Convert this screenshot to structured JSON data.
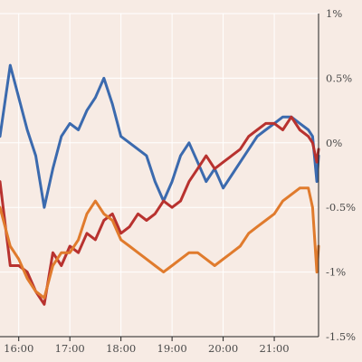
{
  "chart_data": {
    "type": "line",
    "title": "",
    "xlabel": "",
    "ylabel": "",
    "ylim": [
      -1.5,
      1.0
    ],
    "xlim": [
      "15:38",
      "21:52"
    ],
    "grid": true,
    "legend": "none",
    "x_ticks": [
      "16:00",
      "17:00",
      "18:00",
      "19:00",
      "20:00",
      "21:00"
    ],
    "y_ticks": [
      {
        "value": 1.0,
        "label": "1%"
      },
      {
        "value": 0.5,
        "label": "0.5%"
      },
      {
        "value": 0.0,
        "label": "0%"
      },
      {
        "value": -0.5,
        "label": "-0.5%"
      },
      {
        "value": -1.0,
        "label": "-1%"
      },
      {
        "value": -1.5,
        "label": "-1.5%"
      }
    ],
    "x": [
      "15:38",
      "15:50",
      "16:00",
      "16:10",
      "16:20",
      "16:30",
      "16:40",
      "16:50",
      "17:00",
      "17:10",
      "17:20",
      "17:30",
      "17:40",
      "17:50",
      "18:00",
      "18:10",
      "18:20",
      "18:30",
      "18:40",
      "18:50",
      "19:00",
      "19:10",
      "19:20",
      "19:30",
      "19:40",
      "19:50",
      "20:00",
      "20:10",
      "20:20",
      "20:30",
      "20:40",
      "20:50",
      "21:00",
      "21:10",
      "21:20",
      "21:30",
      "21:40",
      "21:45",
      "21:50",
      "21:52"
    ],
    "series": [
      {
        "color": "#3b6aae",
        "values": [
          0.05,
          0.6,
          0.35,
          0.1,
          -0.1,
          -0.5,
          -0.2,
          0.05,
          0.15,
          0.1,
          0.25,
          0.35,
          0.5,
          0.3,
          0.05,
          0.0,
          -0.05,
          -0.1,
          -0.3,
          -0.45,
          -0.3,
          -0.1,
          0.0,
          -0.15,
          -0.3,
          -0.2,
          -0.35,
          -0.25,
          -0.15,
          -0.05,
          0.05,
          0.1,
          0.15,
          0.2,
          0.2,
          0.15,
          0.1,
          0.05,
          -0.3,
          -0.1
        ]
      },
      {
        "color": "#b8322f",
        "values": [
          -0.3,
          -0.95,
          -0.95,
          -1.0,
          -1.15,
          -1.25,
          -0.85,
          -0.95,
          -0.8,
          -0.85,
          -0.7,
          -0.75,
          -0.6,
          -0.55,
          -0.7,
          -0.65,
          -0.55,
          -0.6,
          -0.55,
          -0.45,
          -0.5,
          -0.45,
          -0.3,
          -0.2,
          -0.1,
          -0.2,
          -0.15,
          -0.1,
          -0.05,
          0.05,
          0.1,
          0.15,
          0.15,
          0.1,
          0.2,
          0.1,
          0.05,
          0.0,
          -0.15,
          -0.05
        ]
      },
      {
        "color": "#e07b2d",
        "values": [
          -0.5,
          -0.8,
          -0.9,
          -1.05,
          -1.15,
          -1.2,
          -0.95,
          -0.85,
          -0.85,
          -0.75,
          -0.55,
          -0.45,
          -0.55,
          -0.6,
          -0.75,
          -0.8,
          -0.85,
          -0.9,
          -0.95,
          -1.0,
          -0.95,
          -0.9,
          -0.85,
          -0.85,
          -0.9,
          -0.95,
          -0.9,
          -0.85,
          -0.8,
          -0.7,
          -0.65,
          -0.6,
          -0.55,
          -0.45,
          -0.4,
          -0.35,
          -0.35,
          -0.5,
          -1.0,
          -0.8
        ]
      }
    ]
  }
}
